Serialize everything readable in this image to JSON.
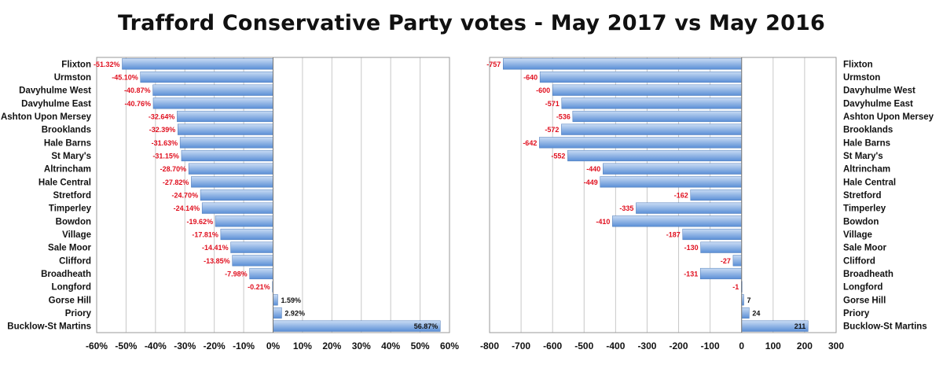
{
  "title": "Trafford Conservative Party votes - May 2017 vs May 2016",
  "colors": {
    "bar_top": "#c9dcf4",
    "bar_bottom": "#5b8fd6",
    "neg_label": "#e0101f",
    "pos_label": "#111111",
    "grid": "#c8c8c8"
  },
  "chart_data": [
    {
      "type": "bar",
      "orientation": "horizontal",
      "title": "",
      "xlabel": "",
      "ylabel": "",
      "categories": [
        "Flixton",
        "Urmston",
        "Davyhulme West",
        "Davyhulme East",
        "Ashton Upon Mersey",
        "Brooklands",
        "Hale Barns",
        "St Mary's",
        "Altrincham",
        "Hale Central",
        "Stretford",
        "Timperley",
        "Bowdon",
        "Village",
        "Sale Moor",
        "Clifford",
        "Broadheath",
        "Longford",
        "Gorse Hill",
        "Priory",
        "Bucklow-St Martins"
      ],
      "values": [
        -51.32,
        -45.1,
        -40.87,
        -40.76,
        -32.64,
        -32.39,
        -31.63,
        -31.15,
        -28.7,
        -27.82,
        -24.7,
        -24.14,
        -19.62,
        -17.81,
        -14.41,
        -13.85,
        -7.98,
        -0.21,
        1.59,
        2.92,
        56.87
      ],
      "value_labels": [
        "-51.32%",
        "-45.10%",
        "-40.87%",
        "-40.76%",
        "-32.64%",
        "-32.39%",
        "-31.63%",
        "-31.15%",
        "-28.70%",
        "-27.82%",
        "-24.70%",
        "-24.14%",
        "-19.62%",
        "-17.81%",
        "-14.41%",
        "-13.85%",
        "-7.98%",
        "-0.21%",
        "1.59%",
        "2.92%",
        "56.87%"
      ],
      "xlim": [
        -60,
        60
      ],
      "xticks": [
        -60,
        -50,
        -40,
        -30,
        -20,
        -10,
        0,
        10,
        20,
        30,
        40,
        50,
        60
      ],
      "xtick_labels": [
        "-60%",
        "-50%",
        "-40%",
        "-30%",
        "-20%",
        "-10%",
        "0%",
        "10%",
        "20%",
        "30%",
        "40%",
        "50%",
        "60%"
      ],
      "category_labels_side": "left",
      "grid": "vertical"
    },
    {
      "type": "bar",
      "orientation": "horizontal",
      "title": "",
      "xlabel": "",
      "ylabel": "",
      "categories": [
        "Flixton",
        "Urmston",
        "Davyhulme West",
        "Davyhulme East",
        "Ashton Upon Mersey",
        "Brooklands",
        "Hale Barns",
        "St Mary's",
        "Altrincham",
        "Hale Central",
        "Stretford",
        "Timperley",
        "Bowdon",
        "Village",
        "Sale Moor",
        "Clifford",
        "Broadheath",
        "Longford",
        "Gorse Hill",
        "Priory",
        "Bucklow-St Martins"
      ],
      "values": [
        -757,
        -640,
        -600,
        -571,
        -536,
        -572,
        -642,
        -552,
        -440,
        -449,
        -162,
        -335,
        -410,
        -187,
        -130,
        -27,
        -131,
        -1,
        7,
        24,
        211
      ],
      "value_labels": [
        "-757",
        "-640",
        "-600",
        "-571",
        "-536",
        "-572",
        "-642",
        "-552",
        "-440",
        "-449",
        "-162",
        "-335",
        "-410",
        "-187",
        "-130",
        "-27",
        "-131",
        "-1",
        "7",
        "24",
        "211"
      ],
      "xlim": [
        -800,
        300
      ],
      "xticks": [
        -800,
        -700,
        -600,
        -500,
        -400,
        -300,
        -200,
        -100,
        0,
        100,
        200,
        300
      ],
      "xtick_labels": [
        "-800",
        "-700",
        "-600",
        "-500",
        "-400",
        "-300",
        "-200",
        "-100",
        "0",
        "100",
        "200",
        "300"
      ],
      "category_labels_side": "right",
      "grid": "vertical"
    }
  ]
}
